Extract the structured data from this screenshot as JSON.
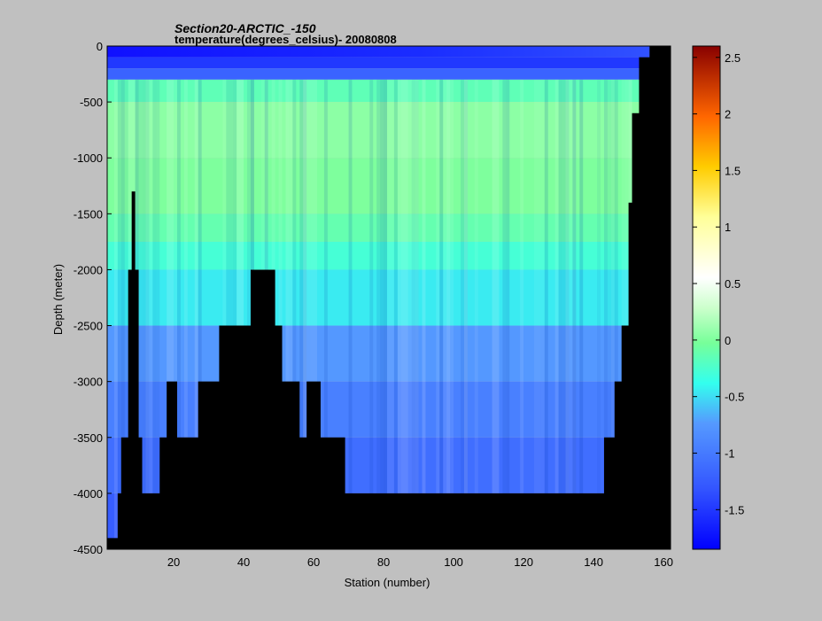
{
  "chart_data": {
    "type": "heatmap",
    "title": "Section20-ARCTIC_-150",
    "subtitle": "temperature(degrees_celsius)- 20080808",
    "xlabel": "Station (number)",
    "ylabel": "Depth (meter)",
    "xlim": [
      1,
      162
    ],
    "ylim": [
      -4500,
      0
    ],
    "x_ticks": [
      20,
      40,
      60,
      80,
      100,
      120,
      140,
      160
    ],
    "y_ticks": [
      0,
      -500,
      -1000,
      -1500,
      -2000,
      -2500,
      -3000,
      -3500,
      -4000,
      -4500
    ],
    "colorbar": {
      "range": [
        -1.85,
        2.6
      ],
      "ticks": [
        -1.5,
        -1,
        -0.5,
        0,
        0.5,
        1,
        1.5,
        2,
        2.5
      ],
      "colormap": "jet"
    },
    "layers": [
      {
        "top": 0,
        "bottom": -100,
        "value": -1.65
      },
      {
        "top": -100,
        "bottom": -200,
        "value": -1.5
      },
      {
        "top": -200,
        "bottom": -300,
        "value": -1.2
      },
      {
        "top": -300,
        "bottom": -500,
        "value": -0.15
      },
      {
        "top": -500,
        "bottom": -1000,
        "value": 0.05
      },
      {
        "top": -1000,
        "bottom": -1500,
        "value": 0.0
      },
      {
        "top": -1500,
        "bottom": -1750,
        "value": -0.12
      },
      {
        "top": -1750,
        "bottom": -2000,
        "value": -0.28
      },
      {
        "top": -2000,
        "bottom": -2500,
        "value": -0.45
      },
      {
        "top": -2500,
        "bottom": -3000,
        "value": -0.75
      },
      {
        "top": -3000,
        "bottom": -3500,
        "value": -0.95
      },
      {
        "top": -3500,
        "bottom": -4000,
        "value": -1.1
      },
      {
        "top": -4000,
        "bottom": -4500,
        "value": -1.25
      }
    ],
    "seafloor": [
      {
        "x": 1,
        "depth": -4400
      },
      {
        "x": 4,
        "depth": -4000
      },
      {
        "x": 5,
        "depth": -3500
      },
      {
        "x": 7,
        "depth": -2000
      },
      {
        "x": 8,
        "depth": -1300
      },
      {
        "x": 9,
        "depth": -2000
      },
      {
        "x": 10,
        "depth": -3500
      },
      {
        "x": 11,
        "depth": -4000
      },
      {
        "x": 16,
        "depth": -3500
      },
      {
        "x": 18,
        "depth": -3000
      },
      {
        "x": 21,
        "depth": -3500
      },
      {
        "x": 27,
        "depth": -3000
      },
      {
        "x": 33,
        "depth": -2500
      },
      {
        "x": 42,
        "depth": -2000
      },
      {
        "x": 46,
        "depth": -2000
      },
      {
        "x": 49,
        "depth": -2500
      },
      {
        "x": 51,
        "depth": -3000
      },
      {
        "x": 56,
        "depth": -3500
      },
      {
        "x": 58,
        "depth": -3000
      },
      {
        "x": 62,
        "depth": -3500
      },
      {
        "x": 69,
        "depth": -4000
      },
      {
        "x": 143,
        "depth": -3500
      },
      {
        "x": 146,
        "depth": -3000
      },
      {
        "x": 148,
        "depth": -2500
      },
      {
        "x": 150,
        "depth": -1400
      },
      {
        "x": 151,
        "depth": -600
      },
      {
        "x": 153,
        "depth": -100
      },
      {
        "x": 156,
        "depth": 0
      },
      {
        "x": 162,
        "depth": 0
      }
    ]
  }
}
